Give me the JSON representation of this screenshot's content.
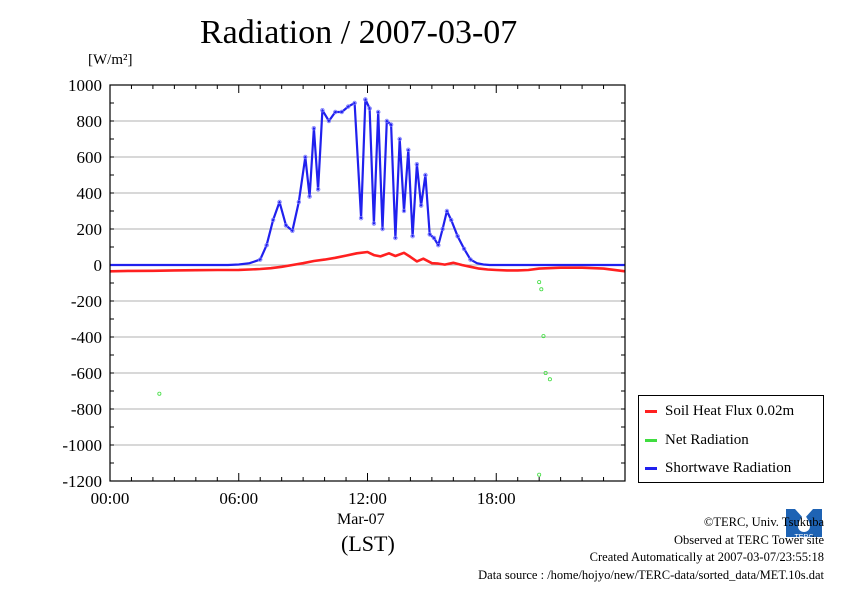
{
  "title": "Radiation / 2007-03-07",
  "y_unit_label": "[W/m²]",
  "x_date_label": "Mar-07",
  "x_unit_label": "(LST)",
  "footer": {
    "copyright": "©TERC, Univ. Tsukuba",
    "observed": "Observed at TERC Tower site",
    "created": "Created Automatically at 2007-03-07/23:55:18",
    "source": "Data source : /home/hojyo/new/TERC-data/sorted_data/MET.10s.dat"
  },
  "logo": {
    "text": "TERC"
  },
  "chart_data": {
    "type": "line",
    "title": "Radiation / 2007-03-07",
    "xlabel": "(LST)",
    "ylabel": "[W/m²]",
    "xlim": [
      0,
      24
    ],
    "ylim": [
      -1200,
      1000
    ],
    "x_ticks": [
      0,
      6,
      12,
      18
    ],
    "x_tick_labels": [
      "00:00",
      "06:00",
      "12:00",
      "18:00"
    ],
    "y_ticks": [
      1000,
      800,
      600,
      400,
      200,
      0,
      -200,
      -400,
      -600,
      -800,
      -1000,
      -1200
    ],
    "y_tick_labels": [
      "1000",
      "800",
      "600",
      "400",
      "200",
      "0",
      "-200",
      "-400",
      "-600",
      "-800",
      "-1000",
      "-1200"
    ],
    "grid": true,
    "legend_position": "bottom-right outside",
    "series": [
      {
        "name": "Soil Heat Flux 0.02m",
        "color": "#ff2020",
        "x": [
          0,
          1,
          2,
          3,
          4,
          5,
          6,
          6.5,
          7,
          7.5,
          8,
          8.5,
          9,
          9.5,
          10,
          10.5,
          11,
          11.5,
          12,
          12.3,
          12.6,
          13,
          13.3,
          13.7,
          14,
          14.3,
          14.6,
          15,
          15.3,
          15.6,
          16,
          16.4,
          16.8,
          17.2,
          17.6,
          18,
          18.5,
          19,
          19.5,
          20,
          21,
          22,
          23,
          24
        ],
        "values": [
          -35,
          -33,
          -32,
          -30,
          -29,
          -28,
          -27,
          -25,
          -22,
          -18,
          -10,
          0,
          10,
          22,
          30,
          40,
          52,
          65,
          72,
          55,
          48,
          65,
          50,
          68,
          45,
          20,
          35,
          10,
          8,
          2,
          12,
          0,
          -10,
          -20,
          -25,
          -28,
          -30,
          -30,
          -28,
          -20,
          -15,
          -15,
          -20,
          -35
        ]
      },
      {
        "name": "Net Radiation",
        "color": "#40dd40",
        "x": [
          2.3,
          20.0,
          20.1,
          20.2,
          20.3,
          20.5,
          20.0
        ],
        "values": [
          -715,
          -95,
          -135,
          -395,
          -600,
          -635,
          -1165
        ]
      },
      {
        "name": "Shortwave Radiation",
        "color": "#2020ee",
        "x": [
          0,
          2,
          4,
          5.5,
          6,
          6.5,
          7,
          7.3,
          7.6,
          7.9,
          8.2,
          8.5,
          8.8,
          9.1,
          9.3,
          9.5,
          9.7,
          9.9,
          10.2,
          10.5,
          10.8,
          11.1,
          11.4,
          11.7,
          11.9,
          12.1,
          12.3,
          12.5,
          12.7,
          12.9,
          13.1,
          13.3,
          13.5,
          13.7,
          13.9,
          14.1,
          14.3,
          14.5,
          14.7,
          14.9,
          15.1,
          15.3,
          15.5,
          15.7,
          15.9,
          16.2,
          16.5,
          16.8,
          17.1,
          17.4,
          17.7,
          18,
          19,
          20,
          22,
          24
        ],
        "values": [
          0,
          0,
          0,
          0,
          3,
          10,
          30,
          110,
          250,
          350,
          220,
          190,
          350,
          600,
          380,
          760,
          420,
          860,
          800,
          850,
          850,
          880,
          900,
          260,
          920,
          870,
          230,
          850,
          200,
          800,
          780,
          150,
          700,
          300,
          640,
          160,
          560,
          330,
          500,
          170,
          150,
          110,
          200,
          300,
          250,
          160,
          90,
          30,
          10,
          3,
          0,
          0,
          0,
          0,
          0,
          0
        ]
      }
    ]
  }
}
